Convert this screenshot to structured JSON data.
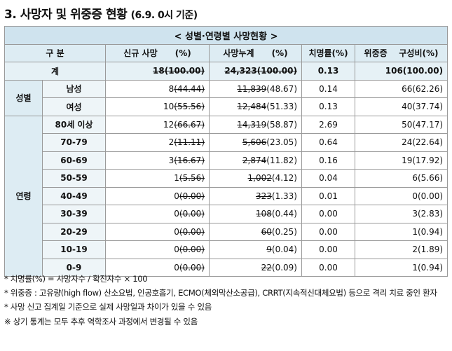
{
  "title": {
    "main": "3. 사망자 및 위중증 현황",
    "sub": "(6.9. 0시 기준)"
  },
  "banner": "< 성별·연령별 사망현황 >",
  "headers": {
    "category": "구 분",
    "new_deaths": "신규 사망",
    "new_pct": "(%)",
    "cumulative": "사망누계",
    "cum_pct": "(%)",
    "fatality": "치명률(%)",
    "critical": "위중증",
    "composition": "구성비(%)"
  },
  "total": {
    "label": "계",
    "new_num": "18(100.00)",
    "new_pct": "",
    "cum_num": "24,323(100.00)",
    "cum_pct": "",
    "fatality": "0.13",
    "critical": "106(100.00)"
  },
  "groups": {
    "sex": "성별",
    "age": "연령"
  },
  "sex_rows": [
    {
      "label": "남성",
      "new_num": "8",
      "new_pct": "(44.44)",
      "cum_num": "11,839",
      "cum_pct": "(48.67)",
      "fatality": "0.14",
      "critical": "66(62.26)"
    },
    {
      "label": "여성",
      "new_num": "10",
      "new_pct": "(55.56)",
      "cum_num": "12,484",
      "cum_pct": "(51.33)",
      "fatality": "0.13",
      "critical": "40(37.74)"
    }
  ],
  "age_rows": [
    {
      "label": "80세 이상",
      "new_num": "12",
      "new_pct": "(66.67)",
      "cum_num": "14,319",
      "cum_pct": "(58.87)",
      "fatality": "2.69",
      "critical": "50(47.17)"
    },
    {
      "label": "70-79",
      "new_num": "2",
      "new_pct": "(11.11)",
      "cum_num": "5,606",
      "cum_pct": "(23.05)",
      "fatality": "0.64",
      "critical": "24(22.64)"
    },
    {
      "label": "60-69",
      "new_num": "3",
      "new_pct": "(16.67)",
      "cum_num": "2,874",
      "cum_pct": "(11.82)",
      "fatality": "0.16",
      "critical": "19(17.92)"
    },
    {
      "label": "50-59",
      "new_num": "1",
      "new_pct": "(5.56)",
      "cum_num": "1,002",
      "cum_pct": "(4.12)",
      "fatality": "0.04",
      "critical": "6(5.66)"
    },
    {
      "label": "40-49",
      "new_num": "0",
      "new_pct": "(0.00)",
      "cum_num": "323",
      "cum_pct": "(1.33)",
      "fatality": "0.01",
      "critical": "0(0.00)"
    },
    {
      "label": "30-39",
      "new_num": "0",
      "new_pct": "(0.00)",
      "cum_num": "108",
      "cum_pct": "(0.44)",
      "fatality": "0.00",
      "critical": "3(2.83)"
    },
    {
      "label": "20-29",
      "new_num": "0",
      "new_pct": "(0.00)",
      "cum_num": "60",
      "cum_pct": "(0.25)",
      "fatality": "0.00",
      "critical": "1(0.94)"
    },
    {
      "label": "10-19",
      "new_num": "0",
      "new_pct": "(0.00)",
      "cum_num": "9",
      "cum_pct": "(0.04)",
      "fatality": "0.00",
      "critical": "2(1.89)"
    },
    {
      "label": "0-9",
      "new_num": "0",
      "new_pct": "(0.00)",
      "cum_num": "22",
      "cum_pct": "(0.09)",
      "fatality": "0.00",
      "critical": "1(0.94)"
    }
  ],
  "notes": [
    "* 치명률(%) = 사망자수 / 확진자수 × 100",
    "* 위중증 : 고유량(high flow) 산소요법, 인공호흡기, ECMO(체외막산소공급), CRRT(지속적신대체요법) 등으로 격리 치료 중인 환자",
    "* 사망 신고 집계일 기준으로 실제 사망일과 차이가 있을 수 있음",
    "※ 상기 통계는 모두 추후 역학조사 과정에서 변경될 수 있음"
  ]
}
